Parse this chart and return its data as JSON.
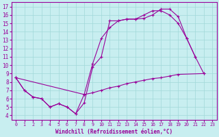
{
  "xlabel": "Windchill (Refroidissement éolien,°C)",
  "background_color": "#c8eef0",
  "grid_color": "#a0d8d8",
  "line_color": "#990099",
  "xlim": [
    -0.5,
    23.5
  ],
  "ylim": [
    3.5,
    17.5
  ],
  "xticks": [
    0,
    1,
    2,
    3,
    4,
    5,
    6,
    7,
    8,
    9,
    10,
    11,
    12,
    13,
    14,
    15,
    16,
    17,
    18,
    19,
    20,
    21,
    22,
    23
  ],
  "yticks": [
    4,
    5,
    6,
    7,
    8,
    9,
    10,
    11,
    12,
    13,
    14,
    15,
    16,
    17
  ],
  "line1_x": [
    0,
    1,
    2,
    3,
    4,
    5,
    6,
    7,
    8,
    9,
    10,
    11,
    12,
    13,
    14,
    15,
    16,
    17,
    18,
    19,
    20,
    21
  ],
  "line1_y": [
    8.5,
    7.0,
    6.2,
    6.0,
    5.0,
    5.4,
    5.0,
    4.2,
    5.5,
    9.8,
    11.0,
    15.3,
    15.3,
    15.5,
    15.5,
    15.6,
    16.0,
    16.7,
    16.7,
    15.8,
    13.2,
    11.0
  ],
  "line2_x": [
    0,
    1,
    2,
    3,
    4,
    5,
    6,
    7,
    8,
    9,
    10,
    11,
    12,
    13,
    14,
    15,
    16,
    17,
    18,
    19,
    20,
    21,
    22
  ],
  "line2_y": [
    8.5,
    7.0,
    6.2,
    6.0,
    5.0,
    5.4,
    5.0,
    4.2,
    6.5,
    10.2,
    13.2,
    14.5,
    15.3,
    15.5,
    15.5,
    16.0,
    16.5,
    16.5,
    16.0,
    15.0,
    13.2,
    11.0,
    9.0
  ],
  "line3_x": [
    0,
    8,
    9,
    10,
    11,
    12,
    13,
    14,
    15,
    16,
    17,
    18,
    19,
    22
  ],
  "line3_y": [
    8.5,
    6.5,
    6.7,
    7.0,
    7.3,
    7.5,
    7.8,
    8.0,
    8.2,
    8.4,
    8.5,
    8.7,
    8.9,
    9.0
  ]
}
